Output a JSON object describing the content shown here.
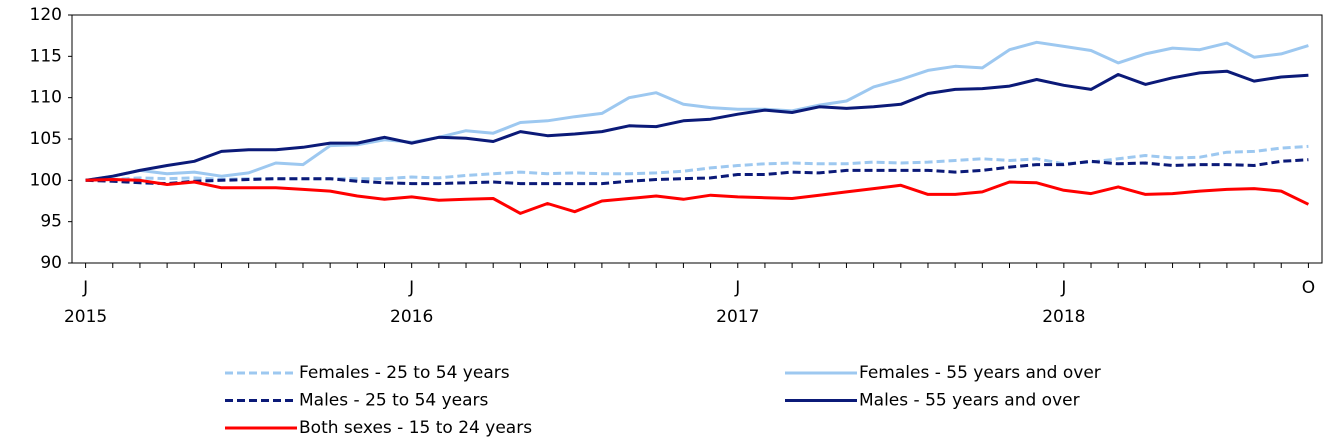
{
  "chart_data": {
    "type": "line",
    "categories": [
      "J",
      null,
      null,
      null,
      null,
      null,
      null,
      null,
      null,
      null,
      null,
      null,
      "J",
      null,
      null,
      null,
      null,
      null,
      null,
      null,
      null,
      null,
      null,
      null,
      "J",
      null,
      null,
      null,
      null,
      null,
      null,
      null,
      null,
      null,
      null,
      null,
      "J",
      null,
      null,
      null,
      null,
      null,
      null,
      null,
      null,
      "O"
    ],
    "years": [
      "2015",
      null,
      null,
      null,
      null,
      null,
      null,
      null,
      null,
      null,
      null,
      null,
      "2016",
      null,
      null,
      null,
      null,
      null,
      null,
      null,
      null,
      null,
      null,
      null,
      "2017",
      null,
      null,
      null,
      null,
      null,
      null,
      null,
      null,
      null,
      null,
      null,
      "2018",
      null,
      null,
      null,
      null,
      null,
      null,
      null,
      null,
      null
    ],
    "ylim": [
      90,
      120
    ],
    "yticks": [
      90,
      95,
      100,
      105,
      110,
      115,
      120
    ],
    "grid": false,
    "series": [
      {
        "name": "Females - 25 to 54 years",
        "color": "#9dc8f0",
        "dashed": true,
        "values": [
          100,
          100.1,
          100.3,
          100.2,
          100.3,
          100.1,
          100.2,
          100.2,
          100.2,
          100.2,
          100.2,
          100.2,
          100.4,
          100.3,
          100.6,
          100.8,
          101.0,
          100.8,
          100.9,
          100.8,
          100.8,
          100.9,
          101.1,
          101.5,
          101.8,
          102.0,
          102.1,
          102.0,
          102.0,
          102.2,
          102.1,
          102.2,
          102.4,
          102.6,
          102.4,
          102.6,
          102.0,
          102.2,
          102.6,
          103.0,
          102.7,
          102.8,
          103.4,
          103.5,
          103.9,
          104.1
        ]
      },
      {
        "name": "Females - 55 years and over",
        "color": "#9dc8f0",
        "dashed": false,
        "values": [
          100,
          100.5,
          101.2,
          100.8,
          101.0,
          100.5,
          100.9,
          102.1,
          101.9,
          104.2,
          104.3,
          104.9,
          104.6,
          105.2,
          106.0,
          105.7,
          107.0,
          107.2,
          107.7,
          108.1,
          110.0,
          110.6,
          109.2,
          108.8,
          108.6,
          108.6,
          108.4,
          109.1,
          109.6,
          111.3,
          112.2,
          113.3,
          113.8,
          113.6,
          115.8,
          116.7,
          116.2,
          115.7,
          114.2,
          115.3,
          116.0,
          115.8,
          116.6,
          114.9,
          115.3,
          116.3
        ]
      },
      {
        "name": "Males - 25 to 54 years",
        "color": "#0b1a78",
        "dashed": true,
        "values": [
          100,
          99.9,
          99.7,
          99.6,
          99.9,
          100.0,
          100.1,
          100.2,
          100.2,
          100.2,
          99.9,
          99.7,
          99.6,
          99.6,
          99.7,
          99.8,
          99.6,
          99.6,
          99.6,
          99.6,
          99.9,
          100.1,
          100.2,
          100.3,
          100.7,
          100.7,
          101.0,
          100.9,
          101.2,
          101.2,
          101.2,
          101.2,
          101.0,
          101.2,
          101.6,
          101.9,
          101.9,
          102.3,
          102.0,
          102.1,
          101.8,
          101.9,
          101.9,
          101.8,
          102.3,
          102.5
        ]
      },
      {
        "name": "Males - 55 years and over",
        "color": "#0b1a78",
        "dashed": false,
        "values": [
          100,
          100.5,
          101.2,
          101.8,
          102.3,
          103.5,
          103.7,
          103.7,
          104.0,
          104.5,
          104.5,
          105.2,
          104.5,
          105.2,
          105.1,
          104.7,
          105.9,
          105.4,
          105.6,
          105.9,
          106.6,
          106.5,
          107.2,
          107.4,
          108.0,
          108.5,
          108.2,
          108.9,
          108.7,
          108.9,
          109.2,
          110.5,
          111.0,
          111.1,
          111.4,
          112.2,
          111.5,
          111.0,
          112.8,
          111.6,
          112.4,
          113.0,
          113.2,
          112.0,
          112.5,
          112.7
        ]
      },
      {
        "name": "Both sexes - 15 to 24 years",
        "color": "#ff0000",
        "dashed": false,
        "values": [
          100,
          100.1,
          100.0,
          99.5,
          99.8,
          99.1,
          99.1,
          99.1,
          98.9,
          98.7,
          98.1,
          97.7,
          98.0,
          97.6,
          97.7,
          97.8,
          96.0,
          97.2,
          96.2,
          97.5,
          97.8,
          98.1,
          97.7,
          98.2,
          98.0,
          97.9,
          97.8,
          98.2,
          98.6,
          99.0,
          99.4,
          98.3,
          98.3,
          98.6,
          99.8,
          99.7,
          98.8,
          98.4,
          99.2,
          98.3,
          98.4,
          98.7,
          98.9,
          99.0,
          98.7,
          97.1
        ]
      }
    ]
  }
}
